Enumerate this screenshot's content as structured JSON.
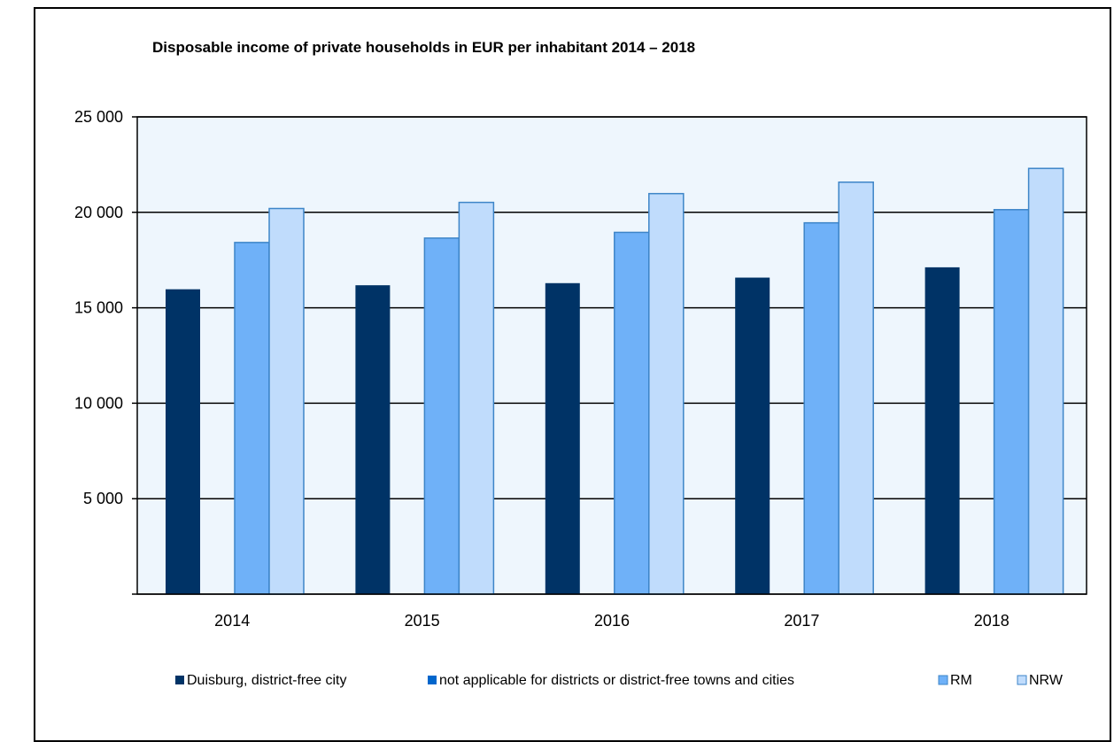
{
  "chart_data": {
    "type": "bar",
    "title": "Disposable income of private households in EUR per inhabitant 2014 – 2018",
    "xlabel": "",
    "ylabel": "",
    "categories": [
      "2014",
      "2015",
      "2016",
      "2017",
      "2018"
    ],
    "ylim": [
      0,
      25000
    ],
    "yticks": [
      0,
      5000,
      10000,
      15000,
      20000,
      25000
    ],
    "ytick_labels": [
      "",
      "5 000",
      "10 000",
      "15 000",
      "20 000",
      "25 000"
    ],
    "grid": true,
    "legend_position": "bottom",
    "series": [
      {
        "name": "Duisburg, district-free city",
        "color": "#003366",
        "values": [
          15970,
          16180,
          16290,
          16580,
          17120
        ]
      },
      {
        "name": "not applicable for districts or district-free towns and cities",
        "color": "#0066cc",
        "values": [
          null,
          null,
          null,
          null,
          null
        ]
      },
      {
        "name": "RM",
        "color": "#6fb1f8",
        "values": [
          18420,
          18650,
          18950,
          19450,
          20140
        ]
      },
      {
        "name": "NRW",
        "color": "#c0dcfc",
        "values": [
          20200,
          20520,
          20980,
          21580,
          22300
        ]
      }
    ],
    "plot_background": "#eef6fd",
    "bar_edge_color": "#3d85c8"
  }
}
